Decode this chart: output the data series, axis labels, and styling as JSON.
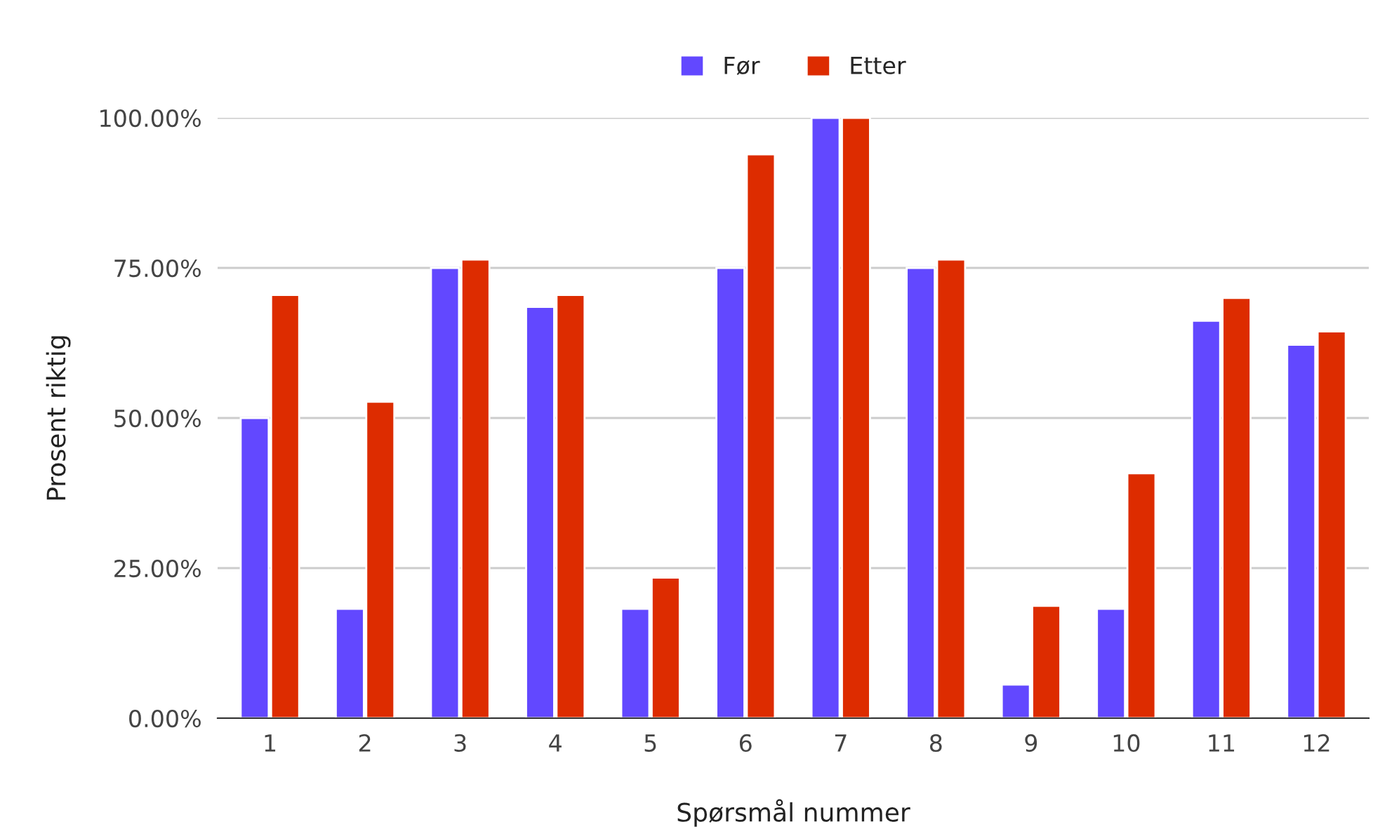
{
  "chart_data": {
    "type": "bar",
    "xlabel": "Spørsmål nummer",
    "ylabel": "Prosent riktig",
    "categories": [
      "1",
      "2",
      "3",
      "4",
      "5",
      "6",
      "7",
      "8",
      "9",
      "10",
      "11",
      "12"
    ],
    "series": [
      {
        "name": "Før",
        "color": "#6248ff",
        "values": [
          50,
          18.2,
          75,
          68.5,
          18.2,
          75,
          100,
          75,
          5.6,
          18.2,
          66.2,
          62.2
        ]
      },
      {
        "name": "Etter",
        "color": "#dd2c00",
        "values": [
          70.5,
          52.7,
          76.4,
          70.5,
          23.4,
          93.9,
          100,
          76.4,
          18.7,
          40.8,
          70,
          64.4
        ]
      }
    ],
    "ylim": [
      0,
      100
    ],
    "yticks": [
      {
        "value": 0,
        "label": "0.00%"
      },
      {
        "value": 25,
        "label": "25.00%"
      },
      {
        "value": 50,
        "label": "50.00%"
      },
      {
        "value": 75,
        "label": "75.00%"
      },
      {
        "value": 100,
        "label": "100.00%"
      }
    ],
    "grid": "y",
    "legend": "top"
  }
}
